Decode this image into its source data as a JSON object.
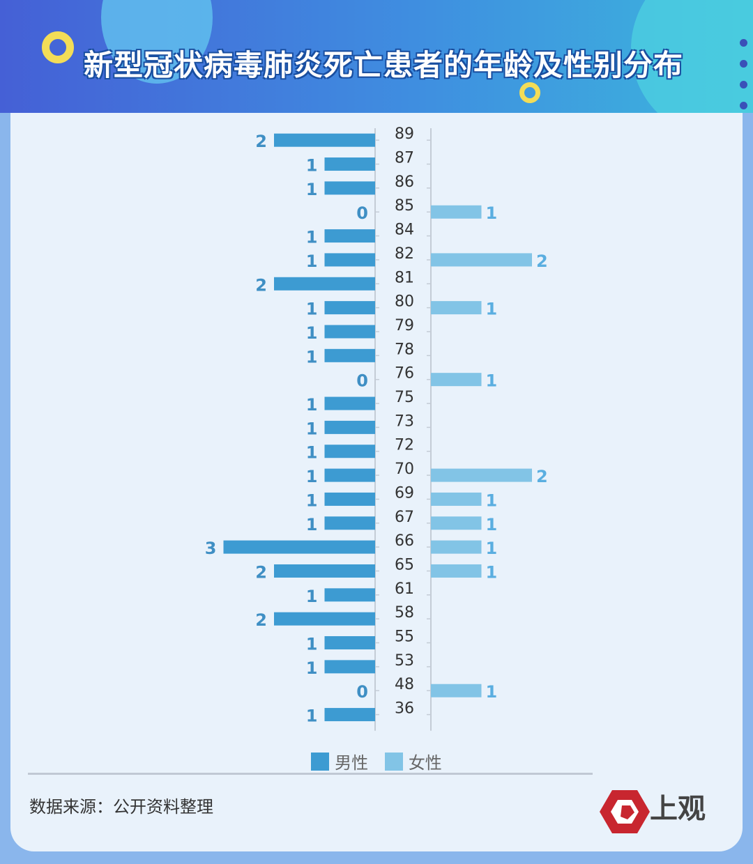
{
  "title": "新型冠状病毒肺炎死亡患者的年龄及性别分布",
  "source": "数据来源：公开资料整理",
  "logo_text": "上观",
  "colors": {
    "male": "#3d9bd2",
    "female": "#82c4e6",
    "label_male": "#3f8fc4",
    "label_female": "#5aaee0"
  },
  "chart_data": {
    "type": "bar",
    "orientation": "horizontal",
    "layout": "butterfly",
    "categories": [
      "89",
      "87",
      "86",
      "85",
      "84",
      "82",
      "81",
      "80",
      "79",
      "78",
      "76",
      "75",
      "73",
      "72",
      "70",
      "69",
      "67",
      "66",
      "65",
      "61",
      "58",
      "55",
      "53",
      "48",
      "36"
    ],
    "series": [
      {
        "name": "男性",
        "values": [
          2,
          1,
          1,
          0,
          1,
          1,
          2,
          1,
          1,
          1,
          0,
          1,
          1,
          1,
          1,
          1,
          1,
          3,
          2,
          1,
          2,
          1,
          1,
          0,
          1
        ]
      },
      {
        "name": "女性",
        "values": [
          null,
          null,
          null,
          1,
          null,
          2,
          null,
          1,
          null,
          null,
          1,
          null,
          null,
          null,
          2,
          1,
          1,
          1,
          1,
          null,
          null,
          null,
          null,
          1,
          null
        ]
      }
    ],
    "legend": [
      "男性",
      "女性"
    ],
    "legend_position": "bottom"
  }
}
